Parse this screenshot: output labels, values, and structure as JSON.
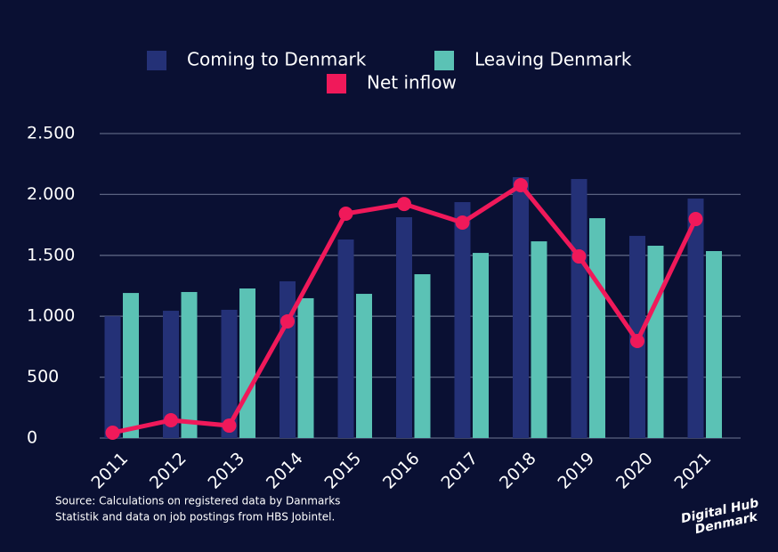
{
  "chart_data": {
    "type": "bar_line",
    "categories": [
      "2011",
      "2012",
      "2013",
      "2014",
      "2015",
      "2016",
      "2017",
      "2018",
      "2019",
      "2020",
      "2021"
    ],
    "series": [
      {
        "name": "Coming to Denmark",
        "type": "bar",
        "color": "#243177",
        "values": [
          1000,
          1045,
          1053,
          1287,
          1630,
          1813,
          1937,
          2142,
          2127,
          1660,
          1966
        ]
      },
      {
        "name": "Leaving Denmark",
        "type": "bar",
        "color": "#5bc2b5",
        "values": [
          1191,
          1199,
          1228,
          1148,
          1184,
          1345,
          1520,
          1615,
          1805,
          1579,
          1535
        ]
      },
      {
        "name": "Net inflow",
        "type": "line",
        "color": "#f0195a",
        "values": [
          44,
          146,
          102,
          958,
          1842,
          1922,
          1769,
          2076,
          1491,
          797,
          1798
        ]
      }
    ],
    "ylim": [
      0,
      2500
    ],
    "yticks": [
      0,
      500,
      {
        "value": 1000,
        "label": "1.000"
      },
      {
        "value": 1500,
        "label": "1.500"
      },
      {
        "value": 2000,
        "label": "2.000"
      },
      {
        "value": 2500,
        "label": "2.500"
      }
    ],
    "grid": true,
    "source": [
      "Source: Calculations on registered data by Danmarks",
      "Statistik and data on job postings from HBS Jobintel."
    ],
    "logo": [
      "Digital Hub",
      "Denmark"
    ]
  }
}
